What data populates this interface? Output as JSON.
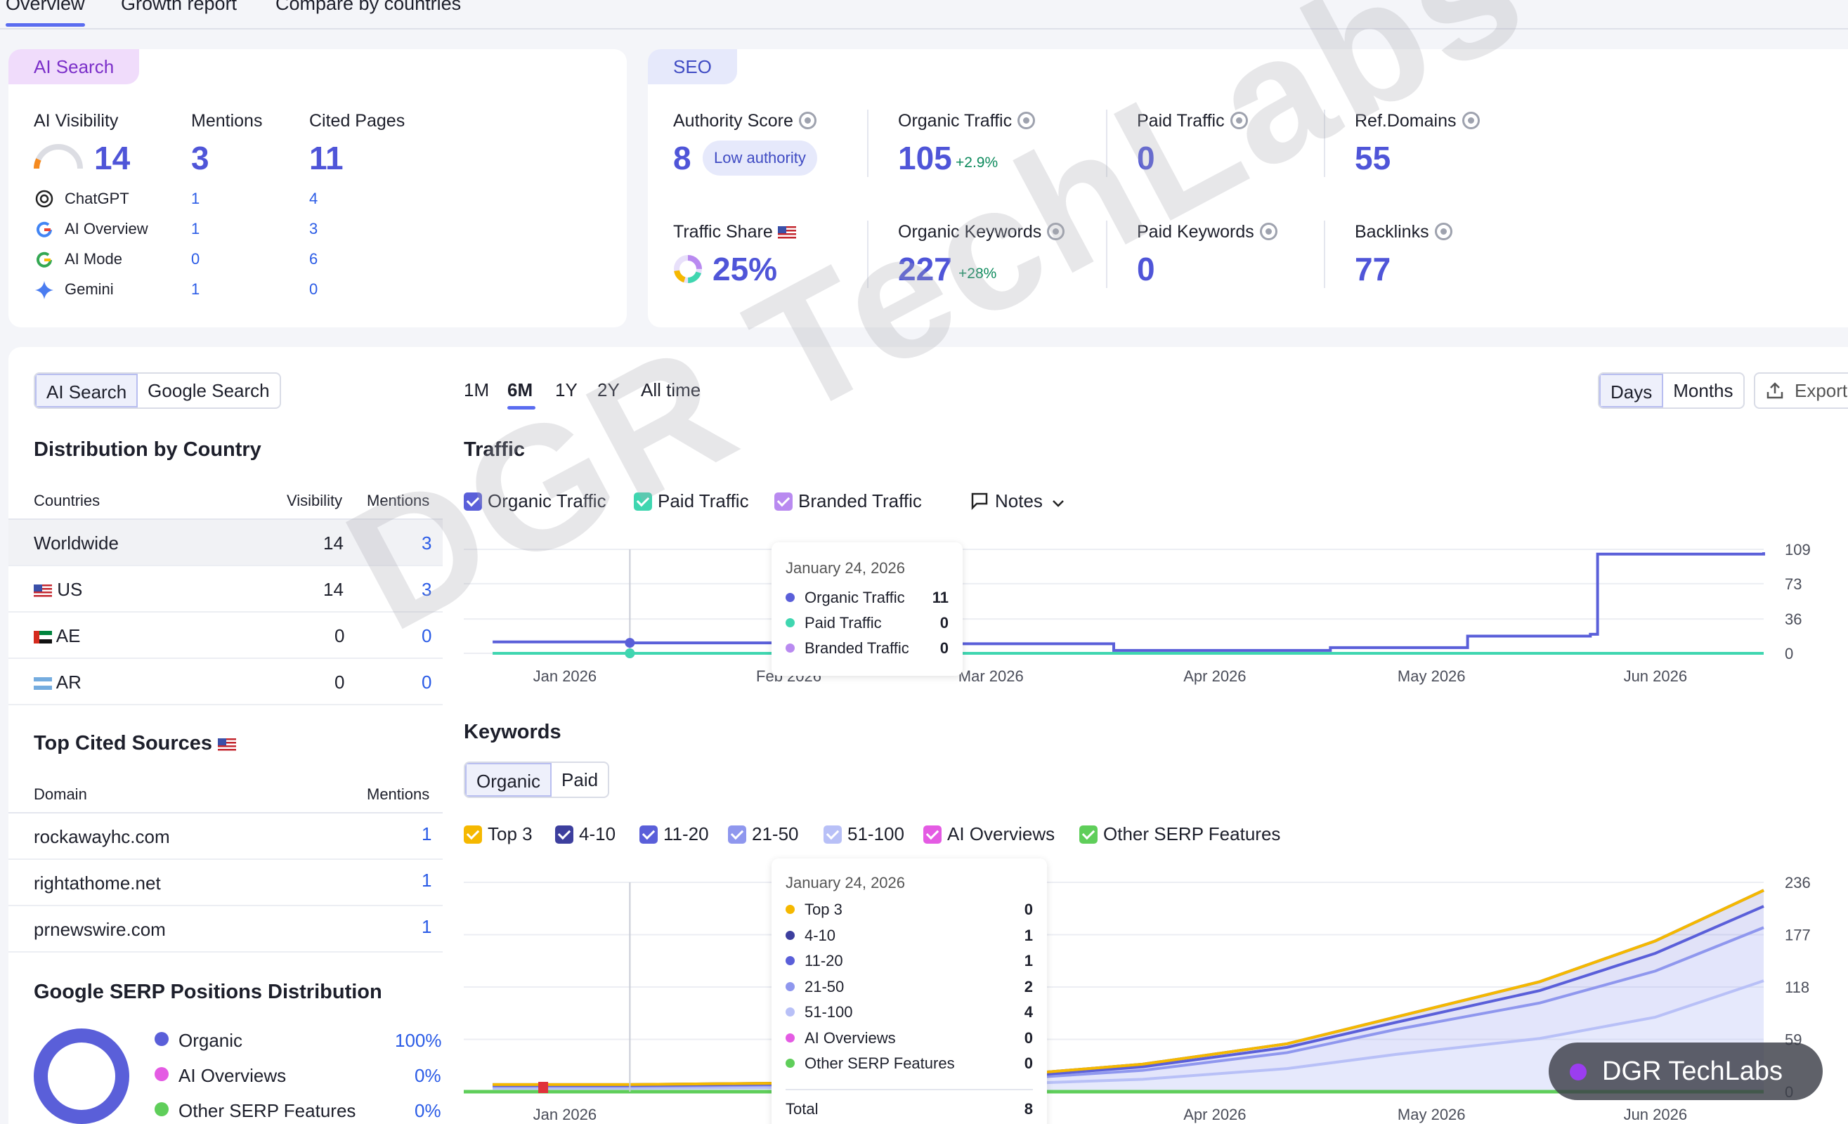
{
  "top_tabs": [
    {
      "label": "Overview",
      "active": true
    },
    {
      "label": "Growth report",
      "active": false
    },
    {
      "label": "Compare by countries",
      "active": false
    }
  ],
  "ai_search": {
    "header": "AI Search",
    "visibility": {
      "label": "AI Visibility",
      "value": "14"
    },
    "mentions": {
      "label": "Mentions",
      "value": "3"
    },
    "cited": {
      "label": "Cited Pages",
      "value": "11"
    },
    "rows": [
      {
        "icon": "chatgpt-icon",
        "name": "ChatGPT",
        "mentions": "1",
        "cited": "4"
      },
      {
        "icon": "google-icon",
        "name": "AI Overview",
        "mentions": "1",
        "cited": "3"
      },
      {
        "icon": "google-icon",
        "name": "AI Mode",
        "mentions": "0",
        "cited": "6"
      },
      {
        "icon": "gemini-icon",
        "name": "Gemini",
        "mentions": "1",
        "cited": "0"
      }
    ]
  },
  "seo": {
    "header": "SEO",
    "authority": {
      "label": "Authority Score",
      "value": "8",
      "badge": "Low authority"
    },
    "organic_traffic": {
      "label": "Organic Traffic",
      "value": "105",
      "delta": "+2.9%"
    },
    "paid_traffic": {
      "label": "Paid Traffic",
      "value": "0"
    },
    "ref_domains": {
      "label": "Ref.Domains",
      "value": "55"
    },
    "traffic_share": {
      "label": "Traffic Share",
      "value": "25%"
    },
    "organic_keywords": {
      "label": "Organic Keywords",
      "value": "227",
      "delta": "+28%"
    },
    "paid_keywords": {
      "label": "Paid Keywords",
      "value": "0"
    },
    "backlinks": {
      "label": "Backlinks",
      "value": "77"
    }
  },
  "left_panel": {
    "search_toggle": [
      "AI Search",
      "Google Search"
    ],
    "distribution_title": "Distribution by Country",
    "columns": {
      "country": "Countries",
      "visibility": "Visibility",
      "mentions": "Mentions"
    },
    "countries": [
      {
        "name": "Worldwide",
        "flag": "",
        "visibility": "14",
        "mentions": "3"
      },
      {
        "name": "US",
        "flag": "flag-us-icon",
        "visibility": "14",
        "mentions": "3"
      },
      {
        "name": "AE",
        "flag": "flag-ae-icon",
        "visibility": "0",
        "mentions": "0"
      },
      {
        "name": "AR",
        "flag": "flag-ar-icon",
        "visibility": "0",
        "mentions": "0"
      }
    ],
    "cited_title": "Top Cited Sources",
    "cited_columns": {
      "domain": "Domain",
      "mentions": "Mentions"
    },
    "cited_sources": [
      {
        "domain": "rockawayhc.com",
        "mentions": "1"
      },
      {
        "domain": "rightathome.net",
        "mentions": "1"
      },
      {
        "domain": "prnewswire.com",
        "mentions": "1"
      }
    ],
    "serp_title": "Google SERP Positions Distribution",
    "serp_legend": [
      {
        "label": "Organic",
        "value": "100%",
        "color": "#5a5fd9"
      },
      {
        "label": "AI Overviews",
        "value": "0%",
        "color": "#e45be3"
      },
      {
        "label": "Other SERP Features",
        "value": "0%",
        "color": "#5fce5a"
      }
    ]
  },
  "range_tabs": [
    {
      "label": "1M",
      "active": false
    },
    {
      "label": "6M",
      "active": true
    },
    {
      "label": "1Y",
      "active": false
    },
    {
      "label": "2Y",
      "active": false
    },
    {
      "label": "All time",
      "active": false
    }
  ],
  "granularity": [
    "Days",
    "Months"
  ],
  "export_label": "Export",
  "traffic": {
    "title": "Traffic",
    "legend": [
      {
        "label": "Organic Traffic",
        "color": "#5a5fd9"
      },
      {
        "label": "Paid Traffic",
        "color": "#3fd6b0"
      },
      {
        "label": "Branded Traffic",
        "color": "#b98af0"
      }
    ],
    "notes_label": "Notes",
    "tooltip": {
      "date": "January 24, 2026",
      "rows": [
        {
          "label": "Organic Traffic",
          "value": "11",
          "color": "#5a5fd9"
        },
        {
          "label": "Paid Traffic",
          "value": "0",
          "color": "#3fd6b0"
        },
        {
          "label": "Branded Traffic",
          "value": "0",
          "color": "#b98af0"
        }
      ]
    }
  },
  "keywords": {
    "title": "Keywords",
    "toggle": [
      "Organic",
      "Paid"
    ],
    "legend": [
      {
        "label": "Top 3",
        "color": "#f5b800"
      },
      {
        "label": "4-10",
        "color": "#3d3f9e"
      },
      {
        "label": "11-20",
        "color": "#5a5fd9"
      },
      {
        "label": "21-50",
        "color": "#8f97ee"
      },
      {
        "label": "51-100",
        "color": "#b8c0f7"
      },
      {
        "label": "AI Overviews",
        "color": "#e45be3"
      },
      {
        "label": "Other SERP Features",
        "color": "#5fce5a"
      }
    ],
    "tooltip": {
      "date": "January 24, 2026",
      "rows": [
        {
          "label": "Top 3",
          "value": "0",
          "color": "#f5b800"
        },
        {
          "label": "4-10",
          "value": "1",
          "color": "#3d3f9e"
        },
        {
          "label": "11-20",
          "value": "1",
          "color": "#5a5fd9"
        },
        {
          "label": "21-50",
          "value": "2",
          "color": "#8f97ee"
        },
        {
          "label": "51-100",
          "value": "4",
          "color": "#b8c0f7"
        },
        {
          "label": "AI Overviews",
          "value": "0",
          "color": "#e45be3"
        },
        {
          "label": "Other SERP Features",
          "value": "0",
          "color": "#5fce5a"
        }
      ],
      "total_label": "Total",
      "total_value": "8"
    }
  },
  "chart_data": [
    {
      "type": "line",
      "title": "Traffic",
      "x": [
        "2026-01-05",
        "2026-01-24",
        "2026-02-15",
        "2026-03-10",
        "2026-04-01",
        "2026-04-20",
        "2026-05-01",
        "2026-05-20",
        "2026-06-06",
        "2026-06-07",
        "2026-06-30"
      ],
      "series": [
        {
          "name": "Organic Traffic",
          "values": [
            12,
            11,
            11,
            10,
            3,
            3,
            6,
            18,
            20,
            104,
            106
          ]
        },
        {
          "name": "Paid Traffic",
          "values": [
            0,
            0,
            0,
            0,
            0,
            0,
            0,
            0,
            0,
            0,
            0
          ]
        },
        {
          "name": "Branded Traffic",
          "values": [
            0,
            0,
            0,
            0,
            0,
            0,
            0,
            0,
            0,
            0,
            0
          ]
        }
      ],
      "x_ticks": [
        "Jan 2026",
        "Feb 2026",
        "Mar 2026",
        "Apr 2026",
        "May 2026",
        "Jun 2026"
      ],
      "y_ticks": [
        "0",
        "36",
        "73",
        "109"
      ],
      "ylim": [
        0,
        109
      ]
    },
    {
      "type": "area",
      "title": "Keywords",
      "x": [
        "2026-01-05",
        "2026-01-24",
        "2026-02-20",
        "2026-03-15",
        "2026-04-05",
        "2026-04-25",
        "2026-05-10",
        "2026-05-30",
        "2026-06-15",
        "2026-06-30"
      ],
      "series": [
        {
          "name": "Top 3",
          "values": [
            0,
            0,
            0,
            0,
            0,
            0,
            0,
            0,
            0,
            0
          ]
        },
        {
          "name": "4-10",
          "values": [
            1,
            1,
            1,
            2,
            3,
            4,
            6,
            10,
            14,
            18
          ]
        },
        {
          "name": "11-20",
          "values": [
            1,
            1,
            1,
            2,
            4,
            6,
            8,
            14,
            20,
            24
          ]
        },
        {
          "name": "21-50",
          "values": [
            2,
            2,
            3,
            5,
            10,
            18,
            28,
            40,
            52,
            60
          ]
        },
        {
          "name": "51-100",
          "values": [
            4,
            4,
            5,
            8,
            14,
            26,
            42,
            60,
            84,
            125
          ]
        },
        {
          "name": "AI Overviews",
          "values": [
            0,
            0,
            0,
            0,
            0,
            0,
            0,
            0,
            0,
            0
          ]
        },
        {
          "name": "Other SERP Features",
          "values": [
            0,
            0,
            0,
            0,
            0,
            0,
            0,
            0,
            0,
            0
          ]
        }
      ],
      "x_ticks": [
        "Jan 2026",
        "Apr 2026",
        "May 2026",
        "Jun 2026"
      ],
      "y_ticks": [
        "0",
        "59",
        "118",
        "177",
        "236"
      ],
      "ylim": [
        0,
        236
      ]
    }
  ],
  "watermark": "DGR TechLabs",
  "brand_badge": "DGR TechLabs"
}
